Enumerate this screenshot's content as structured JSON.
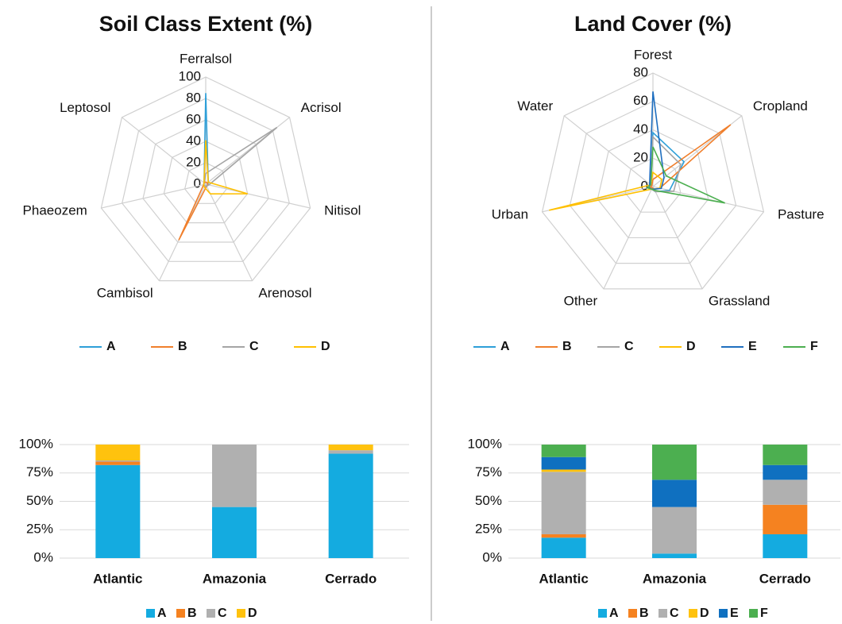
{
  "chart_data": [
    {
      "type": "radar",
      "title": "Soil Class Extent (%)",
      "categories": [
        "Ferralsol",
        "Acrisol",
        "Nitisol",
        "Arenosol",
        "Cambisol",
        "Phaeozem",
        "Leptosol"
      ],
      "ylim": [
        0,
        100
      ],
      "yticks": [
        0,
        20,
        40,
        60,
        80,
        100
      ],
      "grid": true,
      "series": [
        {
          "name": "A",
          "color": "#2e9fd8",
          "values": [
            85,
            3,
            2,
            2,
            2,
            2,
            2
          ]
        },
        {
          "name": "B",
          "color": "#f07f2c",
          "values": [
            2,
            2,
            2,
            2,
            58,
            2,
            2
          ]
        },
        {
          "name": "C",
          "color": "#a5a5a5",
          "values": [
            10,
            85,
            3,
            2,
            2,
            2,
            2
          ]
        },
        {
          "name": "D",
          "color": "#ffc000",
          "values": [
            41,
            3,
            40,
            10,
            3,
            2,
            2
          ]
        }
      ]
    },
    {
      "type": "radar",
      "title": "Land Cover (%)",
      "categories": [
        "Forest",
        "Cropland",
        "Pasture",
        "Grassland",
        "Other",
        "Urban",
        "Water"
      ],
      "ylim": [
        0,
        80
      ],
      "yticks": [
        0,
        20,
        40,
        60,
        80
      ],
      "grid": true,
      "series": [
        {
          "name": "A",
          "color": "#2e9fd8",
          "values": [
            38,
            28,
            12,
            4,
            2,
            3,
            2
          ]
        },
        {
          "name": "B",
          "color": "#f07f2c",
          "values": [
            5,
            70,
            5,
            2,
            1,
            2,
            1
          ]
        },
        {
          "name": "C",
          "color": "#a5a5a5",
          "values": [
            35,
            25,
            15,
            4,
            2,
            3,
            2
          ]
        },
        {
          "name": "D",
          "color": "#ffc000",
          "values": [
            10,
            8,
            5,
            2,
            2,
            75,
            2
          ]
        },
        {
          "name": "E",
          "color": "#1f6fbf",
          "values": [
            67,
            10,
            6,
            2,
            2,
            3,
            3
          ]
        },
        {
          "name": "F",
          "color": "#4caf50",
          "values": [
            28,
            12,
            52,
            3,
            2,
            4,
            2
          ]
        }
      ]
    },
    {
      "type": "stacked-bar",
      "categories": [
        "Atlantic",
        "Amazonia",
        "Cerrado"
      ],
      "ylim": [
        0,
        100
      ],
      "grid": true,
      "yticks": [
        {
          "value": 0,
          "label": "0%"
        },
        {
          "value": 25,
          "label": "25%"
        },
        {
          "value": 50,
          "label": "50%"
        },
        {
          "value": 75,
          "label": "75%"
        },
        {
          "value": 100,
          "label": "100%"
        }
      ],
      "series": [
        {
          "name": "A",
          "color": "#14abe0",
          "values": [
            82,
            45,
            92
          ]
        },
        {
          "name": "B",
          "color": "#f58220",
          "values": [
            3,
            0,
            0
          ]
        },
        {
          "name": "C",
          "color": "#b0b0b0",
          "values": [
            1,
            55,
            3
          ]
        },
        {
          "name": "D",
          "color": "#ffc20e",
          "values": [
            14,
            0,
            5
          ]
        }
      ]
    },
    {
      "type": "stacked-bar",
      "categories": [
        "Atlantic",
        "Amazonia",
        "Cerrado"
      ],
      "ylim": [
        0,
        100
      ],
      "grid": true,
      "yticks": [
        {
          "value": 0,
          "label": "0%"
        },
        {
          "value": 25,
          "label": "25%"
        },
        {
          "value": 50,
          "label": "50%"
        },
        {
          "value": 75,
          "label": "75%"
        },
        {
          "value": 100,
          "label": "100%"
        }
      ],
      "series": [
        {
          "name": "A",
          "color": "#14abe0",
          "values": [
            18,
            4,
            21
          ]
        },
        {
          "name": "B",
          "color": "#f58220",
          "values": [
            3,
            0,
            26
          ]
        },
        {
          "name": "C",
          "color": "#b0b0b0",
          "values": [
            55,
            41,
            22
          ]
        },
        {
          "name": "D",
          "color": "#ffc20e",
          "values": [
            2,
            0,
            0
          ]
        },
        {
          "name": "E",
          "color": "#0f70c0",
          "values": [
            11,
            24,
            13
          ]
        },
        {
          "name": "F",
          "color": "#4caf50",
          "values": [
            11,
            31,
            18
          ]
        }
      ]
    }
  ]
}
